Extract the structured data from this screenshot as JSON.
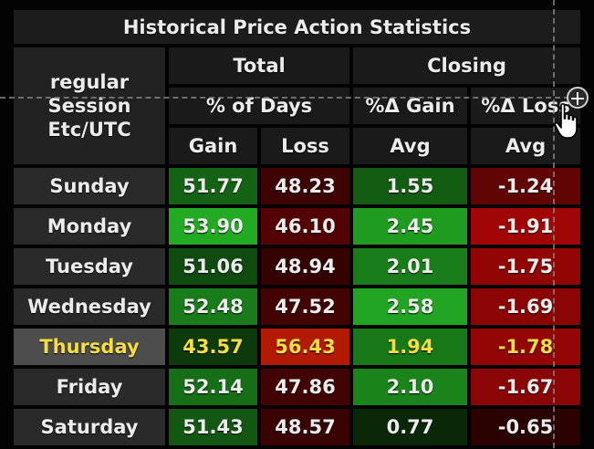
{
  "table": {
    "title": "Historical Price Action Statistics",
    "session_label": "regular\nSession\nEtc/UTC",
    "group_total": "Total",
    "group_closing": "Closing",
    "sub_days": "% of Days",
    "sub_gain": "%Δ Gain",
    "sub_loss": "%Δ Loss",
    "col_gain": "Gain",
    "col_loss": "Loss",
    "col_avg_gain": "Avg",
    "col_avg_loss": "Avg",
    "highlight_color": "#f6dd43",
    "rows": [
      {
        "day": "Sunday",
        "gain": "51.77",
        "loss": "48.23",
        "avg_gain": "1.55",
        "avg_loss": "-1.24",
        "highlight": false
      },
      {
        "day": "Monday",
        "gain": "53.90",
        "loss": "46.10",
        "avg_gain": "2.45",
        "avg_loss": "-1.91",
        "highlight": false
      },
      {
        "day": "Tuesday",
        "gain": "51.06",
        "loss": "48.94",
        "avg_gain": "2.01",
        "avg_loss": "-1.75",
        "highlight": false
      },
      {
        "day": "Wednesday",
        "gain": "52.48",
        "loss": "47.52",
        "avg_gain": "2.58",
        "avg_loss": "-1.69",
        "highlight": false
      },
      {
        "day": "Thursday",
        "gain": "43.57",
        "loss": "56.43",
        "avg_gain": "1.94",
        "avg_loss": "-1.78",
        "highlight": true
      },
      {
        "day": "Friday",
        "gain": "52.14",
        "loss": "47.86",
        "avg_gain": "2.10",
        "avg_loss": "-1.67",
        "highlight": false
      },
      {
        "day": "Saturday",
        "gain": "51.43",
        "loss": "48.57",
        "avg_gain": "0.77",
        "avg_loss": "-0.65",
        "highlight": false
      }
    ]
  },
  "overlay": {
    "plus_glyph": "+",
    "plus_icon": "plus-circle-icon",
    "cursor_icon": "hand-pointer-icon"
  }
}
